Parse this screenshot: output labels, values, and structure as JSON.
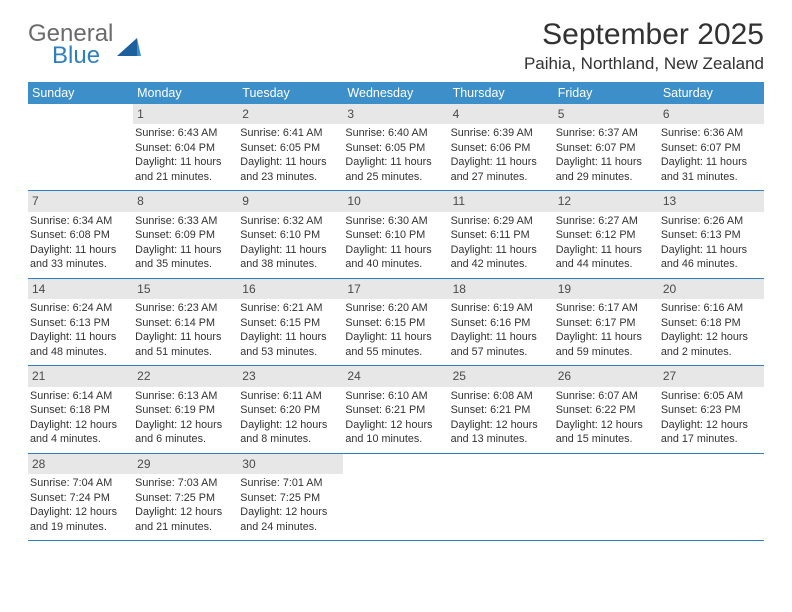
{
  "brand": {
    "word1": "General",
    "word2": "Blue"
  },
  "title": "September 2025",
  "location": "Paihia, Northland, New Zealand",
  "colors": {
    "header_bg": "#3d8fc9",
    "rule": "#2f7fbf",
    "daynum_bg": "#e7e7e7",
    "text": "#323232",
    "logo_gray": "#6b6b6b",
    "logo_blue": "#2f7fbf"
  },
  "fonts": {
    "title_size_pt": 30,
    "location_size_pt": 17,
    "dayheader_size_pt": 12.5,
    "cell_size_pt": 10.8
  },
  "day_headers": [
    "Sunday",
    "Monday",
    "Tuesday",
    "Wednesday",
    "Thursday",
    "Friday",
    "Saturday"
  ],
  "weeks": [
    [
      {
        "n": "",
        "sunrise": "",
        "sunset": "",
        "daylight1": "",
        "daylight2": ""
      },
      {
        "n": "1",
        "sunrise": "Sunrise: 6:43 AM",
        "sunset": "Sunset: 6:04 PM",
        "daylight1": "Daylight: 11 hours",
        "daylight2": "and 21 minutes."
      },
      {
        "n": "2",
        "sunrise": "Sunrise: 6:41 AM",
        "sunset": "Sunset: 6:05 PM",
        "daylight1": "Daylight: 11 hours",
        "daylight2": "and 23 minutes."
      },
      {
        "n": "3",
        "sunrise": "Sunrise: 6:40 AM",
        "sunset": "Sunset: 6:05 PM",
        "daylight1": "Daylight: 11 hours",
        "daylight2": "and 25 minutes."
      },
      {
        "n": "4",
        "sunrise": "Sunrise: 6:39 AM",
        "sunset": "Sunset: 6:06 PM",
        "daylight1": "Daylight: 11 hours",
        "daylight2": "and 27 minutes."
      },
      {
        "n": "5",
        "sunrise": "Sunrise: 6:37 AM",
        "sunset": "Sunset: 6:07 PM",
        "daylight1": "Daylight: 11 hours",
        "daylight2": "and 29 minutes."
      },
      {
        "n": "6",
        "sunrise": "Sunrise: 6:36 AM",
        "sunset": "Sunset: 6:07 PM",
        "daylight1": "Daylight: 11 hours",
        "daylight2": "and 31 minutes."
      }
    ],
    [
      {
        "n": "7",
        "sunrise": "Sunrise: 6:34 AM",
        "sunset": "Sunset: 6:08 PM",
        "daylight1": "Daylight: 11 hours",
        "daylight2": "and 33 minutes."
      },
      {
        "n": "8",
        "sunrise": "Sunrise: 6:33 AM",
        "sunset": "Sunset: 6:09 PM",
        "daylight1": "Daylight: 11 hours",
        "daylight2": "and 35 minutes."
      },
      {
        "n": "9",
        "sunrise": "Sunrise: 6:32 AM",
        "sunset": "Sunset: 6:10 PM",
        "daylight1": "Daylight: 11 hours",
        "daylight2": "and 38 minutes."
      },
      {
        "n": "10",
        "sunrise": "Sunrise: 6:30 AM",
        "sunset": "Sunset: 6:10 PM",
        "daylight1": "Daylight: 11 hours",
        "daylight2": "and 40 minutes."
      },
      {
        "n": "11",
        "sunrise": "Sunrise: 6:29 AM",
        "sunset": "Sunset: 6:11 PM",
        "daylight1": "Daylight: 11 hours",
        "daylight2": "and 42 minutes."
      },
      {
        "n": "12",
        "sunrise": "Sunrise: 6:27 AM",
        "sunset": "Sunset: 6:12 PM",
        "daylight1": "Daylight: 11 hours",
        "daylight2": "and 44 minutes."
      },
      {
        "n": "13",
        "sunrise": "Sunrise: 6:26 AM",
        "sunset": "Sunset: 6:13 PM",
        "daylight1": "Daylight: 11 hours",
        "daylight2": "and 46 minutes."
      }
    ],
    [
      {
        "n": "14",
        "sunrise": "Sunrise: 6:24 AM",
        "sunset": "Sunset: 6:13 PM",
        "daylight1": "Daylight: 11 hours",
        "daylight2": "and 48 minutes."
      },
      {
        "n": "15",
        "sunrise": "Sunrise: 6:23 AM",
        "sunset": "Sunset: 6:14 PM",
        "daylight1": "Daylight: 11 hours",
        "daylight2": "and 51 minutes."
      },
      {
        "n": "16",
        "sunrise": "Sunrise: 6:21 AM",
        "sunset": "Sunset: 6:15 PM",
        "daylight1": "Daylight: 11 hours",
        "daylight2": "and 53 minutes."
      },
      {
        "n": "17",
        "sunrise": "Sunrise: 6:20 AM",
        "sunset": "Sunset: 6:15 PM",
        "daylight1": "Daylight: 11 hours",
        "daylight2": "and 55 minutes."
      },
      {
        "n": "18",
        "sunrise": "Sunrise: 6:19 AM",
        "sunset": "Sunset: 6:16 PM",
        "daylight1": "Daylight: 11 hours",
        "daylight2": "and 57 minutes."
      },
      {
        "n": "19",
        "sunrise": "Sunrise: 6:17 AM",
        "sunset": "Sunset: 6:17 PM",
        "daylight1": "Daylight: 11 hours",
        "daylight2": "and 59 minutes."
      },
      {
        "n": "20",
        "sunrise": "Sunrise: 6:16 AM",
        "sunset": "Sunset: 6:18 PM",
        "daylight1": "Daylight: 12 hours",
        "daylight2": "and 2 minutes."
      }
    ],
    [
      {
        "n": "21",
        "sunrise": "Sunrise: 6:14 AM",
        "sunset": "Sunset: 6:18 PM",
        "daylight1": "Daylight: 12 hours",
        "daylight2": "and 4 minutes."
      },
      {
        "n": "22",
        "sunrise": "Sunrise: 6:13 AM",
        "sunset": "Sunset: 6:19 PM",
        "daylight1": "Daylight: 12 hours",
        "daylight2": "and 6 minutes."
      },
      {
        "n": "23",
        "sunrise": "Sunrise: 6:11 AM",
        "sunset": "Sunset: 6:20 PM",
        "daylight1": "Daylight: 12 hours",
        "daylight2": "and 8 minutes."
      },
      {
        "n": "24",
        "sunrise": "Sunrise: 6:10 AM",
        "sunset": "Sunset: 6:21 PM",
        "daylight1": "Daylight: 12 hours",
        "daylight2": "and 10 minutes."
      },
      {
        "n": "25",
        "sunrise": "Sunrise: 6:08 AM",
        "sunset": "Sunset: 6:21 PM",
        "daylight1": "Daylight: 12 hours",
        "daylight2": "and 13 minutes."
      },
      {
        "n": "26",
        "sunrise": "Sunrise: 6:07 AM",
        "sunset": "Sunset: 6:22 PM",
        "daylight1": "Daylight: 12 hours",
        "daylight2": "and 15 minutes."
      },
      {
        "n": "27",
        "sunrise": "Sunrise: 6:05 AM",
        "sunset": "Sunset: 6:23 PM",
        "daylight1": "Daylight: 12 hours",
        "daylight2": "and 17 minutes."
      }
    ],
    [
      {
        "n": "28",
        "sunrise": "Sunrise: 7:04 AM",
        "sunset": "Sunset: 7:24 PM",
        "daylight1": "Daylight: 12 hours",
        "daylight2": "and 19 minutes."
      },
      {
        "n": "29",
        "sunrise": "Sunrise: 7:03 AM",
        "sunset": "Sunset: 7:25 PM",
        "daylight1": "Daylight: 12 hours",
        "daylight2": "and 21 minutes."
      },
      {
        "n": "30",
        "sunrise": "Sunrise: 7:01 AM",
        "sunset": "Sunset: 7:25 PM",
        "daylight1": "Daylight: 12 hours",
        "daylight2": "and 24 minutes."
      },
      {
        "n": "",
        "sunrise": "",
        "sunset": "",
        "daylight1": "",
        "daylight2": ""
      },
      {
        "n": "",
        "sunrise": "",
        "sunset": "",
        "daylight1": "",
        "daylight2": ""
      },
      {
        "n": "",
        "sunrise": "",
        "sunset": "",
        "daylight1": "",
        "daylight2": ""
      },
      {
        "n": "",
        "sunrise": "",
        "sunset": "",
        "daylight1": "",
        "daylight2": ""
      }
    ]
  ]
}
